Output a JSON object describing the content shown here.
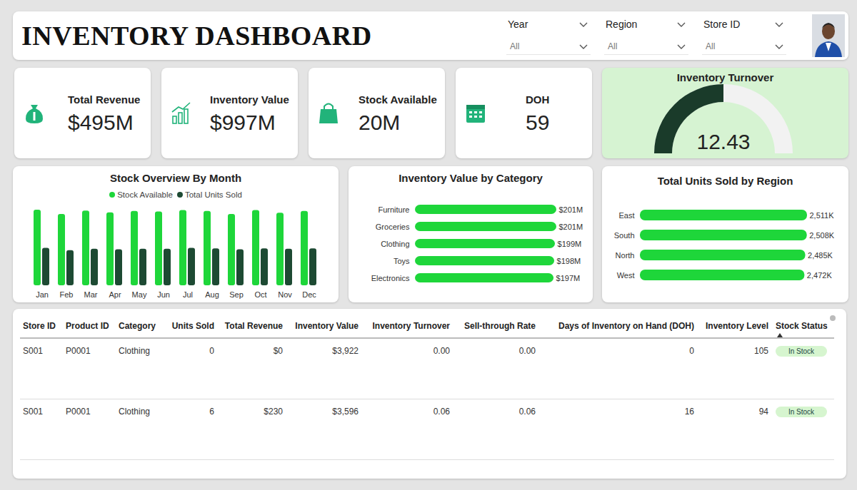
{
  "header": {
    "title": "INVENTORY DASHBOARD",
    "filters": [
      {
        "label": "Year",
        "value": "All"
      },
      {
        "label": "Region",
        "value": "All"
      },
      {
        "label": "Store ID",
        "value": "All"
      }
    ]
  },
  "kpis": [
    {
      "label": "Total Revenue",
      "value": "$495M"
    },
    {
      "label": "Inventory Value",
      "value": "$997M"
    },
    {
      "label": "Stock Available",
      "value": "20M"
    },
    {
      "label": "DOH",
      "value": "59"
    }
  ],
  "gauge": {
    "title": "Inventory Turnover",
    "value": 12.43,
    "range": [
      0,
      24.86
    ]
  },
  "chart_data": [
    {
      "type": "bar",
      "title": "Stock Overview By Month",
      "categories": [
        "Jan",
        "Feb",
        "Mar",
        "Apr",
        "May",
        "Jun",
        "Jul",
        "Aug",
        "Sep",
        "Oct",
        "Nov",
        "Dec"
      ],
      "series": [
        {
          "name": "Stock Available",
          "color": "#1ed63a",
          "values": [
            1720000,
            1620000,
            1700000,
            1660000,
            1690000,
            1680000,
            1710000,
            1690000,
            1620000,
            1710000,
            1650000,
            1690000
          ]
        },
        {
          "name": "Total Units Sold",
          "color": "#1d4a33",
          "values": [
            850000,
            800000,
            830000,
            820000,
            830000,
            830000,
            850000,
            840000,
            820000,
            840000,
            830000,
            840000
          ]
        }
      ],
      "ylim": [
        0,
        1800000
      ],
      "yticks": [],
      "tick_labels": "x",
      "legend": "top"
    },
    {
      "type": "bar",
      "orientation": "horizontal",
      "title": "Inventory Value by Category",
      "categories": [
        "Furniture",
        "Groceries",
        "Clothing",
        "Toys",
        "Electronics"
      ],
      "values": [
        201000000,
        201000000,
        199000000,
        198000000,
        197000000
      ],
      "value_labels": [
        "$201M",
        "$201M",
        "$199M",
        "$198M",
        "$197M"
      ],
      "color": "#1ed63a",
      "xlim": [
        0,
        201000000
      ],
      "xticks": [],
      "tick_labels": "y",
      "data_labels": true
    },
    {
      "type": "bar",
      "orientation": "horizontal",
      "title": "Total Units Sold by Region",
      "categories": [
        "East",
        "South",
        "North",
        "West"
      ],
      "values": [
        2511000,
        2508000,
        2485000,
        2472000
      ],
      "value_labels": [
        "2,511K",
        "2,508K",
        "2,485K",
        "2,472K"
      ],
      "color": "#1ed63a",
      "xlim": [
        0,
        2511000
      ],
      "xticks": [],
      "tick_labels": "y",
      "data_labels": true
    }
  ],
  "table": {
    "columns": [
      "Store ID",
      "Product ID",
      "Category",
      "Units Sold",
      "Total Revenue",
      "Inventory Value",
      "Inventory Turnover",
      "Sell-through Rate",
      "Days of Inventory on Hand (DOH)",
      "Inventory Level",
      "Stock Status"
    ],
    "rows": [
      [
        "S001",
        "P0001",
        "Clothing",
        "0",
        "$0",
        "$3,922",
        "0.00",
        "0.00",
        "0",
        "105",
        "In Stock"
      ],
      [
        "S001",
        "P0001",
        "Clothing",
        "6",
        "$230",
        "$3,596",
        "0.06",
        "0.06",
        "16",
        "94",
        "In Stock"
      ]
    ]
  }
}
